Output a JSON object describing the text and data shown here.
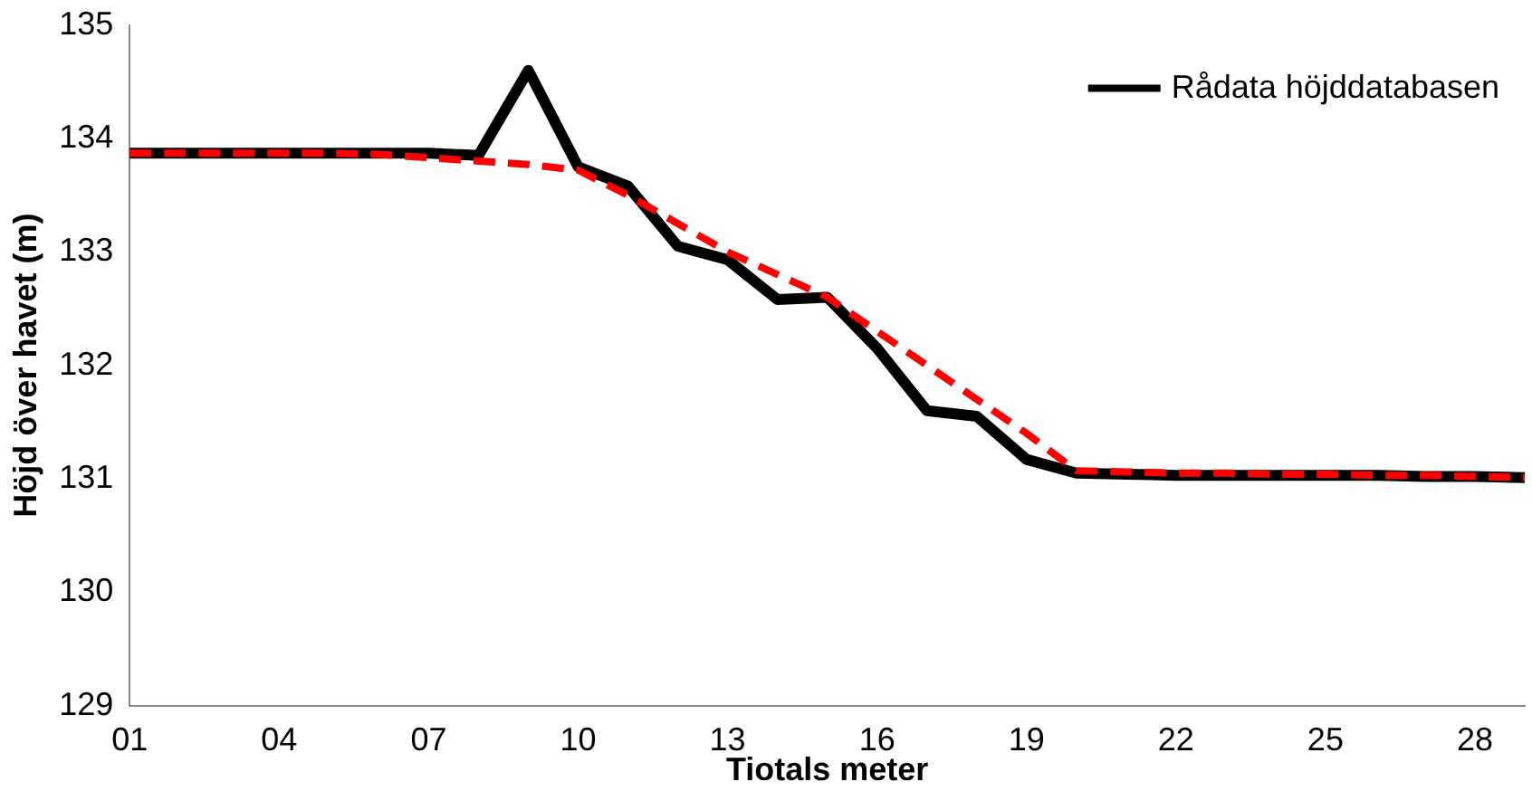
{
  "chart_data": {
    "type": "line",
    "xlabel": "Tiotals meter",
    "ylabel": "Höjd över havet (m)",
    "categories": [
      "01",
      null,
      null,
      "04",
      null,
      null,
      "07",
      null,
      null,
      "10",
      null,
      null,
      "13",
      null,
      null,
      "16",
      null,
      null,
      "19",
      null,
      null,
      "22",
      null,
      null,
      "25",
      null,
      null,
      "28",
      null
    ],
    "series": [
      {
        "name": "Rådata höjddatabasen",
        "color": "#000000",
        "line_style": "solid",
        "values": [
          133.87,
          133.87,
          133.87,
          133.87,
          133.87,
          133.87,
          133.87,
          133.85,
          134.6,
          133.75,
          133.58,
          133.05,
          132.93,
          132.58,
          132.6,
          132.15,
          131.6,
          131.55,
          131.17,
          131.05,
          131.04,
          131.03,
          131.03,
          131.03,
          131.03,
          131.03,
          131.02,
          131.02,
          131.01
        ]
      },
      {
        "color": "#ff0000",
        "line_style": "dashed",
        "values": [
          133.87,
          133.87,
          133.87,
          133.87,
          133.87,
          133.86,
          133.83,
          133.8,
          133.77,
          133.72,
          133.5,
          133.25,
          133.0,
          132.8,
          132.6,
          132.3,
          132.0,
          131.7,
          131.4,
          131.07,
          131.06,
          131.05,
          131.05,
          131.04,
          131.04,
          131.03,
          131.03,
          131.02,
          131.01
        ]
      }
    ],
    "ylim": [
      129,
      135
    ],
    "yticks": [
      129,
      130,
      131,
      132,
      133,
      134,
      135
    ],
    "grid": false,
    "legend": "top right",
    "marker": "none"
  }
}
